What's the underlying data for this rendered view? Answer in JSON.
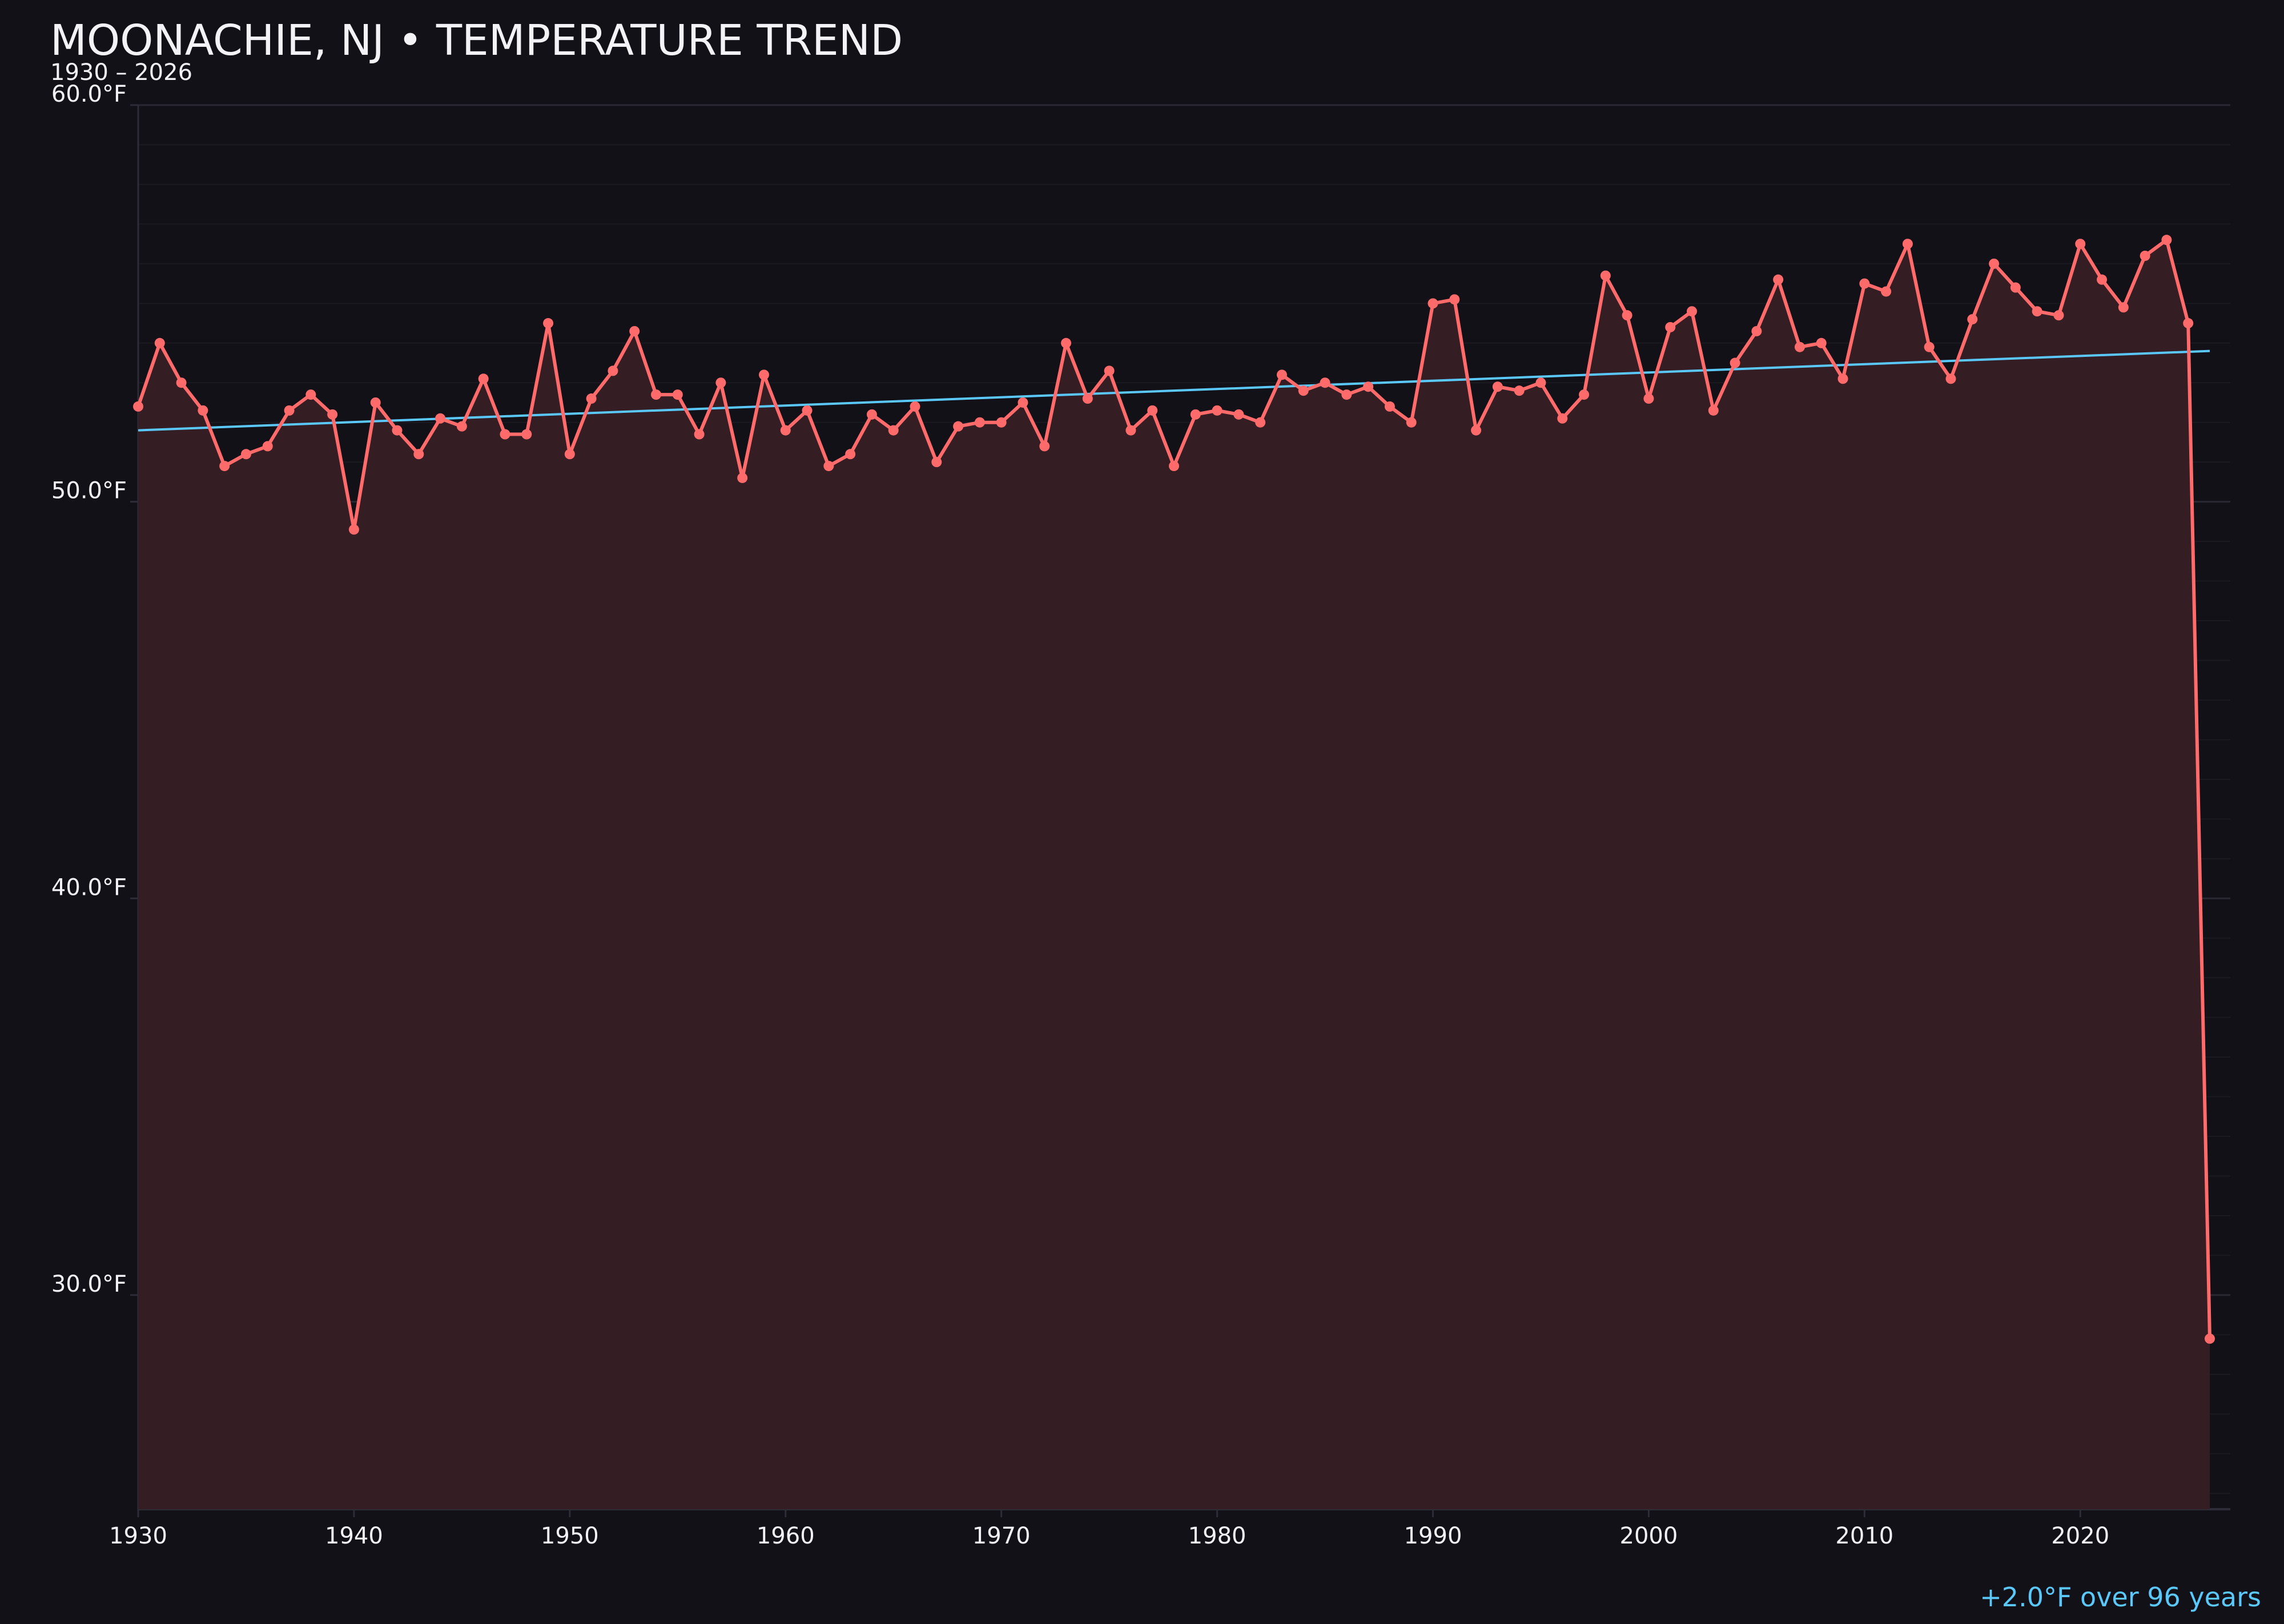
{
  "title": "MOONACHIE, NJ • TEMPERATURE TREND",
  "subtitle": "1930 – 2026",
  "footer": "+2.0°F over 96 years",
  "colors": {
    "background": "#121118",
    "series": "#ff6b6b",
    "fill": "#341e24",
    "trend": "#5ac8fa",
    "grid": "#24222b"
  },
  "chart_data": {
    "type": "line",
    "title": "MOONACHIE, NJ • TEMPERATURE TREND",
    "subtitle": "1930 – 2026",
    "xlim": [
      1930,
      2027
    ],
    "ylim": [
      24.6,
      60
    ],
    "grid": true,
    "x_ticks": [
      1930,
      1940,
      1950,
      1960,
      1970,
      1980,
      1990,
      2000,
      2010,
      2020
    ],
    "y_ticks": [
      30,
      40,
      50,
      60
    ],
    "y_tick_labels": [
      "30.0°F",
      "40.0°F",
      "50.0°F",
      "60.0°F"
    ],
    "x_start": 1930,
    "series": [
      {
        "values": [
          52.4,
          54.0,
          53.0,
          52.3,
          50.9,
          51.2,
          51.4,
          52.3,
          52.7,
          52.2,
          49.3,
          52.5,
          51.8,
          51.2,
          52.1,
          51.9,
          53.1,
          51.7,
          51.7,
          54.5,
          51.2,
          52.6,
          53.3,
          54.3,
          52.7,
          52.7,
          51.7,
          53.0,
          50.6,
          53.2,
          51.8,
          52.3,
          50.9,
          51.2,
          52.2,
          51.8,
          52.4,
          51.0,
          51.9,
          52.0,
          52.0,
          52.5,
          51.4,
          54.0,
          52.6,
          53.3,
          51.8,
          52.3,
          50.9,
          52.2,
          52.3,
          52.2,
          52.0,
          53.2,
          52.8,
          53.0,
          52.7,
          52.9,
          52.4,
          52.0,
          55.0,
          55.1,
          51.8,
          52.9,
          52.8,
          53.0,
          52.1,
          52.7,
          55.7,
          54.7,
          52.6,
          54.4,
          54.8,
          52.3,
          53.5,
          54.3,
          55.6,
          53.9,
          54.0,
          53.1,
          55.5,
          55.3,
          56.5,
          53.9,
          53.1,
          54.6,
          56.0,
          55.4,
          54.8,
          54.7,
          56.5,
          55.6,
          54.9,
          56.2,
          56.6,
          54.5,
          28.9
        ]
      }
    ],
    "trend": {
      "x": [
        1930,
        2026
      ],
      "y": [
        51.8,
        53.8
      ]
    },
    "annotation": "+2.0°F over 96 years"
  }
}
